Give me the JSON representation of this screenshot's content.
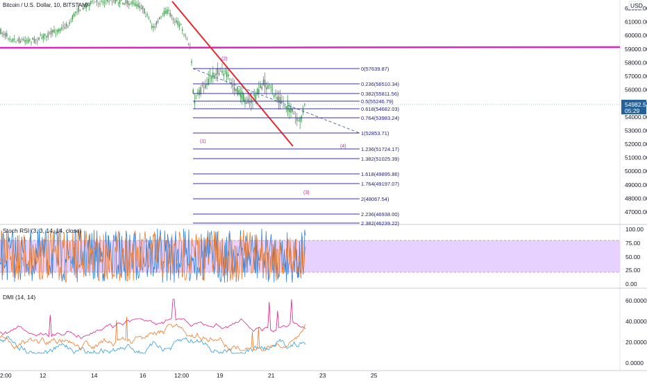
{
  "header": {
    "symbol_title": "Bitcoin / U.S. Dollar, 10, BITSTAMP",
    "currency": "USD"
  },
  "colors": {
    "up": "#2b9a48",
    "down": "#2b9a48",
    "candle": "#3a8f45",
    "horizontal_line": "#e020c8",
    "trend_line": "#e8272d",
    "fib_line": "#3b2fb4",
    "rsi_k": "#2f7fd6",
    "rsi_d": "#ee7b2b",
    "rsi_band": "#e2c9ff",
    "dmi_plus": "#2f9fd6",
    "dmi_minus": "#ee7b2b",
    "adx": "#e0208a",
    "price_tag": "#25629a"
  },
  "price_axis": {
    "labels": [
      "62000.00",
      "61000.00",
      "60000.00",
      "59000.00",
      "58000.00",
      "57000.00",
      "56000.00",
      "55000.00",
      "54000.00",
      "53000.00",
      "52000.00",
      "51000.00",
      "50000.00",
      "49000.00",
      "48000.00",
      "47000.00"
    ],
    "current_price": "54982.57",
    "countdown": "05:29"
  },
  "time_axis": {
    "labels": [
      "2:00",
      "12",
      "14",
      "16",
      "12:00",
      "19",
      "21",
      "23",
      "25"
    ]
  },
  "fib_levels": [
    {
      "label": "0(57639.87)"
    },
    {
      "label": "0.236(56510.34)"
    },
    {
      "label": "0.382(55811.56)"
    },
    {
      "label": "0.5(55246.79)"
    },
    {
      "label": "0.618(54682.03)"
    },
    {
      "label": "0.764(53983.24)"
    },
    {
      "label": "1(52853.71)"
    },
    {
      "label": "1.236(51724.17)"
    },
    {
      "label": "1.382(51025.39)"
    },
    {
      "label": "1.618(49895.86)"
    },
    {
      "label": "1.764(49197.07)"
    },
    {
      "label": "2(48067.54)"
    },
    {
      "label": "2.236(46938.00)"
    },
    {
      "label": "2.382(46239.22)"
    }
  ],
  "wave_labels": [
    "(2)",
    "(1)",
    "(4)",
    "(3)"
  ],
  "stoch_rsi": {
    "title": "Stoch RSI (3, 3, 14, 14, close)",
    "axis": [
      "100.00",
      "75.00",
      "50.00",
      "25.00",
      "0.00"
    ]
  },
  "dmi": {
    "title": "DMI (14, 14)",
    "axis": [
      "60.0000",
      "40.0000",
      "20.0000",
      "0.0000"
    ]
  }
}
